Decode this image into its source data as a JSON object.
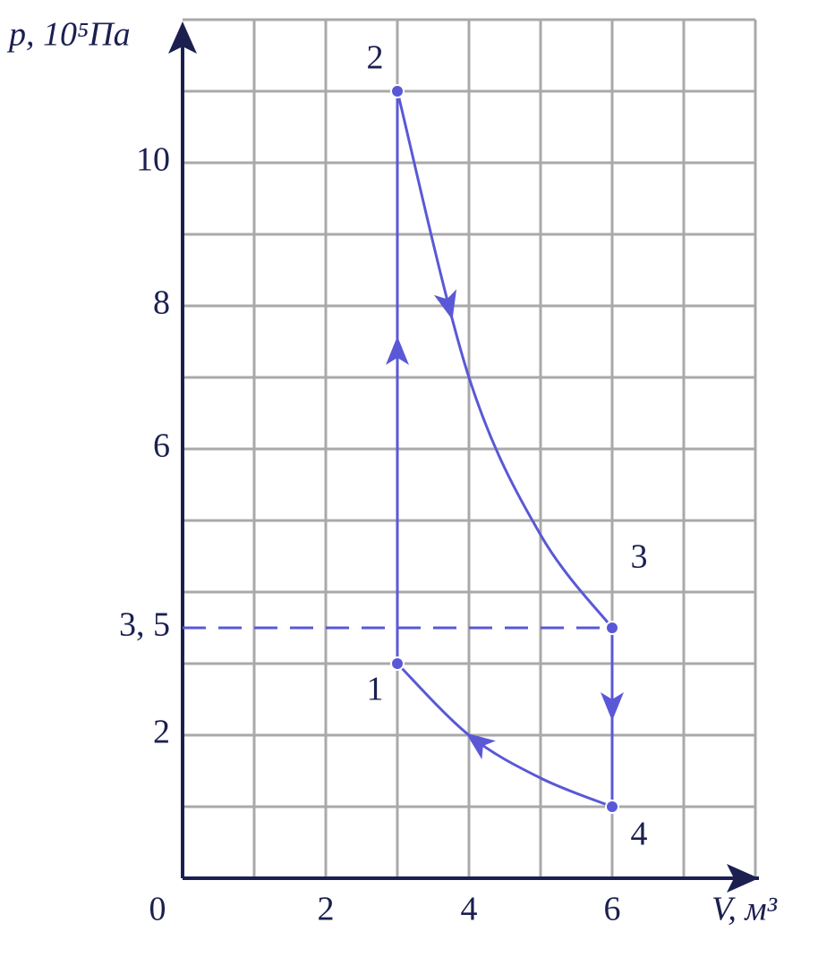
{
  "chart_data": {
    "type": "line",
    "x_label": "V, м³",
    "y_label": "p, 10⁵Па",
    "xlim": [
      0,
      8
    ],
    "ylim": [
      0,
      12
    ],
    "xticks": [
      0,
      2,
      4,
      6
    ],
    "yticks": [
      2,
      {
        "value": 3.5,
        "label": "3, 5"
      },
      6,
      8,
      10
    ],
    "grid": true,
    "color": "#5a58d6",
    "point_labels": [
      "1",
      "2",
      "3",
      "4"
    ],
    "series": [
      {
        "x": [
          3,
          3
        ],
        "values": [
          3,
          11
        ]
      },
      {
        "x": [
          3,
          4,
          5,
          6
        ],
        "values": [
          11,
          7,
          4.8,
          3.5
        ]
      },
      {
        "x": [
          6,
          6
        ],
        "values": [
          3.5,
          1
        ]
      },
      {
        "x": [
          6,
          5,
          4,
          3
        ],
        "values": [
          1,
          1.4,
          2,
          3
        ]
      }
    ]
  }
}
